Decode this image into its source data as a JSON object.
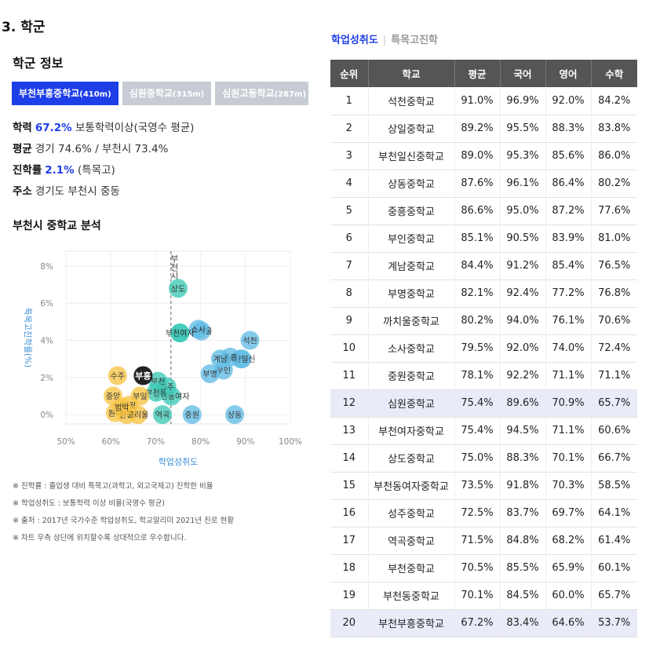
{
  "section": {
    "number": "3.",
    "title": "학군"
  },
  "info": {
    "heading": "학군 정보",
    "tabs": [
      {
        "name": "부천부흥중학교",
        "dist": "(410m)",
        "active": true
      },
      {
        "name": "심원중학교",
        "dist": "(315m)",
        "active": false
      },
      {
        "name": "심원고등학교",
        "dist": "(287m)",
        "active": false
      }
    ],
    "rows": {
      "academic": {
        "label": "학력",
        "value": "67.2%",
        "note": "보통학력이상(국영수 평균)"
      },
      "average": {
        "label": "평균",
        "text": "경기 74.6% / 부천시 73.4%"
      },
      "advance": {
        "label": "진학률",
        "value": "2.1%",
        "note": "(특목고)"
      },
      "address": {
        "label": "주소",
        "text": "경기도 부천시 중동"
      }
    }
  },
  "analysis_heading": "부천시 중학교 분석",
  "chart_data": {
    "type": "scatter",
    "xlabel": "학업성취도",
    "ylabel": "특목고진학률(%)",
    "x_ticks": [
      "50%",
      "60%",
      "70%",
      "80%",
      "90%",
      "100%"
    ],
    "y_ticks": [
      "0%",
      "2%",
      "4%",
      "6%",
      "8%"
    ],
    "xlim": [
      50,
      100
    ],
    "ylim": [
      -0.5,
      8.8
    ],
    "reference_line": {
      "x": 73.4,
      "label": "부천시"
    },
    "points": [
      {
        "label": "석천",
        "x": 91.0,
        "y": 4.0,
        "color": "#62bde6"
      },
      {
        "label": "상일",
        "x": 89.2,
        "y": 3.0,
        "color": "#62bde6"
      },
      {
        "label": "부천일신",
        "x": 89.0,
        "y": 3.0,
        "color": "#62bde6"
      },
      {
        "label": "상동",
        "x": 87.6,
        "y": 0.0,
        "color": "#62bde6"
      },
      {
        "label": "중흥",
        "x": 86.6,
        "y": 3.1,
        "color": "#62bde6"
      },
      {
        "label": "부인",
        "x": 85.1,
        "y": 2.4,
        "color": "#62bde6"
      },
      {
        "label": "계남",
        "x": 84.4,
        "y": 3.0,
        "color": "#62bde6"
      },
      {
        "label": "부명",
        "x": 82.1,
        "y": 2.2,
        "color": "#62bde6"
      },
      {
        "label": "까치울",
        "x": 80.2,
        "y": 4.5,
        "color": "#62bde6"
      },
      {
        "label": "소사",
        "x": 79.5,
        "y": 4.6,
        "color": "#62bde6"
      },
      {
        "label": "중원",
        "x": 78.1,
        "y": 0.0,
        "color": "#62bde6"
      },
      {
        "label": "심원",
        "x": 75.4,
        "y": 4.4,
        "color": "#3cc9b6"
      },
      {
        "label": "부천여자",
        "x": 75.4,
        "y": 4.4,
        "color": "#3cc9b6"
      },
      {
        "label": "상도",
        "x": 75.0,
        "y": 6.8,
        "color": "#3cc9b6"
      },
      {
        "label": "부천동여자",
        "x": 73.5,
        "y": 1.0,
        "color": "#3cc9b6"
      },
      {
        "label": "성주",
        "x": 72.5,
        "y": 1.5,
        "color": "#3cc9b6"
      },
      {
        "label": "역곡",
        "x": 71.5,
        "y": 0.0,
        "color": "#3cc9b6"
      },
      {
        "label": "부천",
        "x": 70.5,
        "y": 1.8,
        "color": "#3cc9b6"
      },
      {
        "label": "부천동",
        "x": 70.1,
        "y": 1.2,
        "color": "#3cc9b6"
      },
      {
        "label": "부흥",
        "x": 67.2,
        "y": 2.1,
        "color": "#222222"
      },
      {
        "label": "수주",
        "x": 61.5,
        "y": 2.1,
        "color": "#f7c444"
      },
      {
        "label": "부일",
        "x": 66.5,
        "y": 1.0,
        "color": "#f7c444"
      },
      {
        "label": "중앙",
        "x": 60.5,
        "y": 1.0,
        "color": "#f7c444"
      },
      {
        "label": "원미",
        "x": 61.0,
        "y": 0.1,
        "color": "#f7c444"
      },
      {
        "label": "여월",
        "x": 64.0,
        "y": 0.5,
        "color": "#f7c444"
      },
      {
        "label": "원종",
        "x": 63.5,
        "y": 0.0,
        "color": "#f7c444"
      },
      {
        "label": "고리울",
        "x": 66.0,
        "y": 0.0,
        "color": "#f7c444"
      },
      {
        "label": "범박",
        "x": 62.5,
        "y": 0.4,
        "color": "#f7c444"
      }
    ]
  },
  "notes": [
    "※ 진학률 : 졸업생 대비 특목고(과학고, 외고국제고) 진학한 비율",
    "※ 학업성취도 : 보통학력 이상 비율(국영수 평균)",
    "※ 출처 : 2017년 국가수준 학업성취도, 학교알리미 2021년 진로 현황",
    "※ 차트 우측 상단에 위치할수록 상대적으로 우수합니다."
  ],
  "table_tabs": {
    "active": "학업성취도",
    "inactive": "특목고진학"
  },
  "table": {
    "headers": [
      "순위",
      "학교",
      "평균",
      "국어",
      "영어",
      "수학"
    ],
    "rows": [
      [
        "1",
        "석천중학교",
        "91.0%",
        "96.9%",
        "92.0%",
        "84.2%"
      ],
      [
        "2",
        "상일중학교",
        "89.2%",
        "95.5%",
        "88.3%",
        "83.8%"
      ],
      [
        "3",
        "부천일신중학교",
        "89.0%",
        "95.3%",
        "85.6%",
        "86.0%"
      ],
      [
        "4",
        "상동중학교",
        "87.6%",
        "96.1%",
        "86.4%",
        "80.2%"
      ],
      [
        "5",
        "중흥중학교",
        "86.6%",
        "95.0%",
        "87.2%",
        "77.6%"
      ],
      [
        "6",
        "부인중학교",
        "85.1%",
        "90.5%",
        "83.9%",
        "81.0%"
      ],
      [
        "7",
        "계남중학교",
        "84.4%",
        "91.2%",
        "85.4%",
        "76.5%"
      ],
      [
        "8",
        "부명중학교",
        "82.1%",
        "92.4%",
        "77.2%",
        "76.8%"
      ],
      [
        "9",
        "까치울중학교",
        "80.2%",
        "94.0%",
        "76.1%",
        "70.6%"
      ],
      [
        "10",
        "소사중학교",
        "79.5%",
        "92.0%",
        "74.0%",
        "72.4%"
      ],
      [
        "11",
        "중원중학교",
        "78.1%",
        "92.2%",
        "71.1%",
        "71.1%"
      ],
      [
        "12",
        "심원중학교",
        "75.4%",
        "89.6%",
        "70.9%",
        "65.7%"
      ],
      [
        "13",
        "부천여자중학교",
        "75.4%",
        "94.5%",
        "71.1%",
        "60.6%"
      ],
      [
        "14",
        "상도중학교",
        "75.0%",
        "88.3%",
        "70.1%",
        "66.7%"
      ],
      [
        "15",
        "부천동여자중학교",
        "73.5%",
        "91.8%",
        "70.3%",
        "58.5%"
      ],
      [
        "16",
        "성주중학교",
        "72.5%",
        "83.7%",
        "69.7%",
        "64.1%"
      ],
      [
        "17",
        "역곡중학교",
        "71.5%",
        "84.8%",
        "68.2%",
        "61.4%"
      ],
      [
        "18",
        "부천중학교",
        "70.5%",
        "85.5%",
        "65.9%",
        "60.1%"
      ],
      [
        "19",
        "부천동중학교",
        "70.1%",
        "84.5%",
        "60.0%",
        "65.7%"
      ],
      [
        "20",
        "부천부흥중학교",
        "67.2%",
        "83.4%",
        "64.6%",
        "53.7%"
      ]
    ],
    "highlighted_ranks": [
      "12",
      "20"
    ]
  }
}
